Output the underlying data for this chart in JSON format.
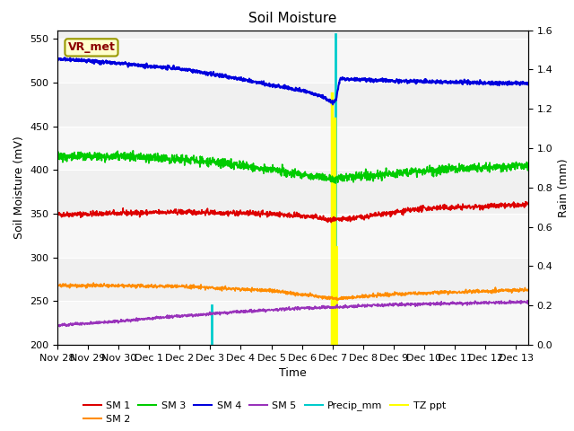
{
  "title": "Soil Moisture",
  "xlabel": "Time",
  "ylabel_left": "Soil Moisture (mV)",
  "ylabel_right": "Rain (mm)",
  "ylim_left": [
    200,
    560
  ],
  "ylim_right": [
    0.0,
    1.6
  ],
  "yticks_left": [
    200,
    250,
    300,
    350,
    400,
    450,
    500,
    550
  ],
  "yticks_right": [
    0.0,
    0.2,
    0.4,
    0.6,
    0.8,
    1.0,
    1.2,
    1.4,
    1.6
  ],
  "bg_color": "#dcdcdc",
  "plot_bg": "#f0f0f0",
  "annotation_label": "VR_met",
  "annotation_color": "#8B0000",
  "annotation_bg": "#ffffcc",
  "annotation_border": "#999900",
  "sm1_color": "#dd0000",
  "sm2_color": "#ff8c00",
  "sm3_color": "#00cc00",
  "sm4_color": "#0000dd",
  "sm5_color": "#9933bb",
  "precip_color": "#00cccc",
  "tzppt_color": "#ffff00",
  "tick_labels": [
    "Nov 28",
    "Nov 29",
    "Nov 30",
    "Dec 1",
    "Dec 2",
    "Dec 3",
    "Dec 4",
    "Dec 5",
    "Dec 6",
    "Dec 7",
    "Dec 8",
    "Dec 9",
    "Dec 10",
    "Dec 11",
    "Dec 12",
    "Dec 13"
  ],
  "tick_positions": [
    0,
    1,
    2,
    3,
    4,
    5,
    6,
    7,
    8,
    9,
    10,
    11,
    12,
    13,
    14,
    15
  ],
  "xlim": [
    0,
    15.4
  ]
}
